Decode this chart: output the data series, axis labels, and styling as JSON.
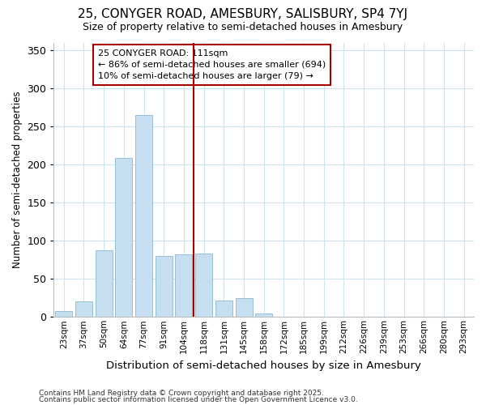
{
  "title_line1": "25, CONYGER ROAD, AMESBURY, SALISBURY, SP4 7YJ",
  "title_line2": "Size of property relative to semi-detached houses in Amesbury",
  "xlabel": "Distribution of semi-detached houses by size in Amesbury",
  "ylabel": "Number of semi-detached properties",
  "categories": [
    "23sqm",
    "37sqm",
    "50sqm",
    "64sqm",
    "77sqm",
    "91sqm",
    "104sqm",
    "118sqm",
    "131sqm",
    "145sqm",
    "158sqm",
    "172sqm",
    "185sqm",
    "199sqm",
    "212sqm",
    "226sqm",
    "239sqm",
    "253sqm",
    "266sqm",
    "280sqm",
    "293sqm"
  ],
  "values": [
    8,
    20,
    87,
    209,
    265,
    80,
    82,
    83,
    22,
    25,
    5,
    0,
    0,
    0,
    0,
    0,
    0,
    0,
    0,
    0,
    0
  ],
  "bar_color": "#c5dff0",
  "bar_edge_color": "#8ab8d4",
  "property_label": "25 CONYGER ROAD: 111sqm",
  "pct_smaller": 86,
  "count_smaller": 694,
  "pct_larger": 10,
  "count_larger": 79,
  "vline_bin_index": 7,
  "annotation_box_color": "#aa0000",
  "ylim": [
    0,
    360
  ],
  "yticks": [
    0,
    50,
    100,
    150,
    200,
    250,
    300,
    350
  ],
  "footer_line1": "Contains HM Land Registry data © Crown copyright and database right 2025.",
  "footer_line2": "Contains public sector information licensed under the Open Government Licence v3.0.",
  "bg_color": "#ffffff",
  "grid_color": "#d0e4f0"
}
